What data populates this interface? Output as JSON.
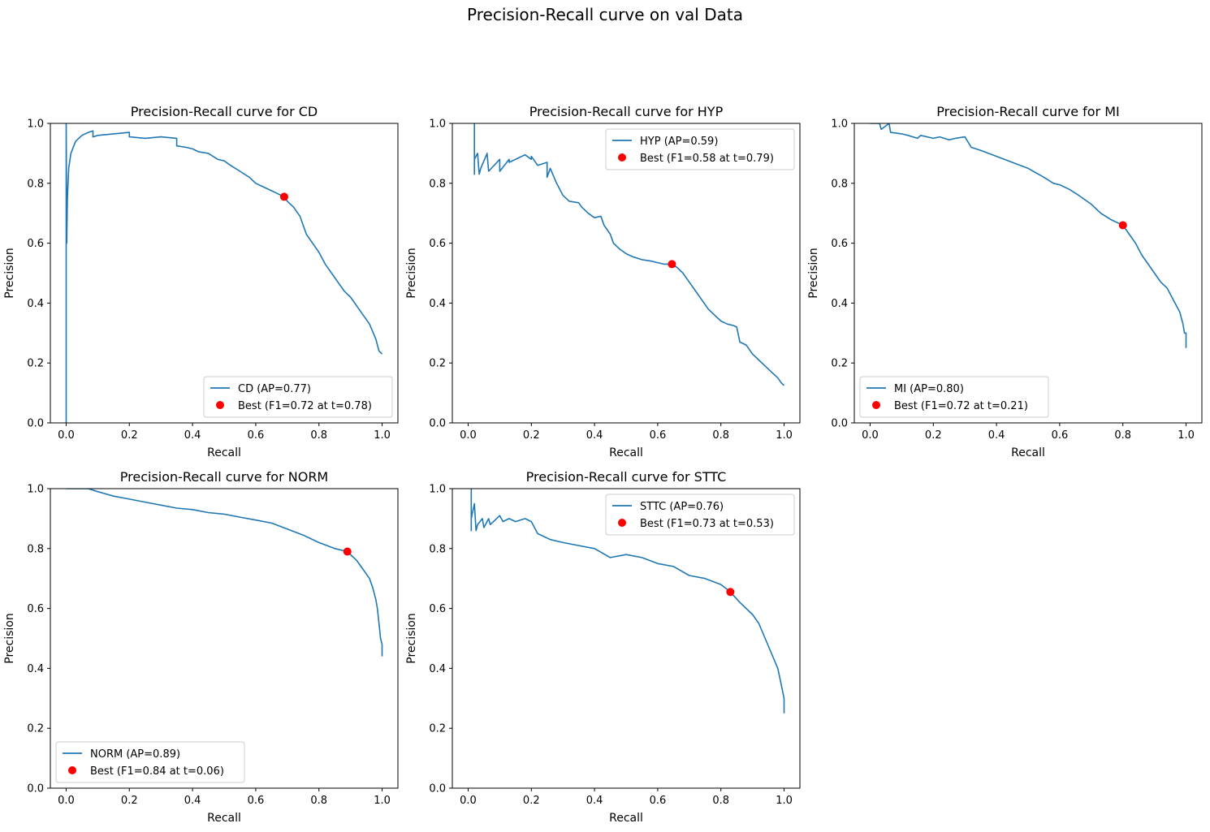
{
  "figure": {
    "title": "Precision-Recall curve on val Data"
  },
  "chart_data": [
    {
      "type": "line",
      "title": "Precision-Recall curve for CD",
      "xlabel": "Recall",
      "ylabel": "Precision",
      "xlim": [
        -0.05,
        1.05
      ],
      "ylim": [
        0.0,
        1.0
      ],
      "xticks": [
        0.0,
        0.2,
        0.4,
        0.6,
        0.8,
        1.0
      ],
      "yticks": [
        0.0,
        0.2,
        0.4,
        0.6,
        0.8,
        1.0
      ],
      "legend_position": "lower right",
      "series": [
        {
          "name": "CD (AP=0.77)",
          "color": "#1f77b4",
          "x": [
            0.0,
            0.0,
            0.002,
            0.004,
            0.008,
            0.015,
            0.03,
            0.05,
            0.07,
            0.085,
            0.085,
            0.1,
            0.15,
            0.2,
            0.2,
            0.25,
            0.3,
            0.35,
            0.35,
            0.38,
            0.4,
            0.42,
            0.45,
            0.48,
            0.5,
            0.52,
            0.55,
            0.58,
            0.6,
            0.62,
            0.65,
            0.67,
            0.69,
            0.7,
            0.72,
            0.74,
            0.75,
            0.76,
            0.78,
            0.8,
            0.82,
            0.84,
            0.86,
            0.88,
            0.9,
            0.92,
            0.94,
            0.96,
            0.98,
            0.99,
            1.0
          ],
          "y": [
            0.0,
            1.0,
            0.6,
            0.75,
            0.85,
            0.9,
            0.94,
            0.96,
            0.97,
            0.975,
            0.955,
            0.96,
            0.965,
            0.97,
            0.955,
            0.95,
            0.955,
            0.95,
            0.925,
            0.92,
            0.915,
            0.905,
            0.9,
            0.88,
            0.875,
            0.86,
            0.84,
            0.82,
            0.8,
            0.79,
            0.775,
            0.765,
            0.755,
            0.74,
            0.72,
            0.69,
            0.66,
            0.63,
            0.6,
            0.57,
            0.53,
            0.5,
            0.47,
            0.44,
            0.42,
            0.39,
            0.36,
            0.33,
            0.28,
            0.24,
            0.23
          ]
        },
        {
          "name": "Best (F1=0.72 at t=0.78)",
          "type": "scatter",
          "color": "#ff0000",
          "x": [
            0.69
          ],
          "y": [
            0.755
          ]
        }
      ]
    },
    {
      "type": "line",
      "title": "Precision-Recall curve for HYP",
      "xlabel": "Recall",
      "ylabel": "Precision",
      "xlim": [
        -0.05,
        1.05
      ],
      "ylim": [
        0.0,
        1.0
      ],
      "xticks": [
        0.0,
        0.2,
        0.4,
        0.6,
        0.8,
        1.0
      ],
      "yticks": [
        0.0,
        0.2,
        0.4,
        0.6,
        0.8,
        1.0
      ],
      "legend_position": "upper right",
      "series": [
        {
          "name": "HYP (AP=0.59)",
          "color": "#1f77b4",
          "x": [
            0.02,
            0.02,
            0.02,
            0.03,
            0.035,
            0.04,
            0.06,
            0.065,
            0.1,
            0.1,
            0.13,
            0.13,
            0.18,
            0.2,
            0.2,
            0.22,
            0.25,
            0.25,
            0.26,
            0.28,
            0.3,
            0.32,
            0.35,
            0.36,
            0.38,
            0.4,
            0.42,
            0.43,
            0.45,
            0.46,
            0.48,
            0.5,
            0.52,
            0.55,
            0.58,
            0.6,
            0.62,
            0.64,
            0.66,
            0.68,
            0.7,
            0.72,
            0.74,
            0.76,
            0.78,
            0.8,
            0.82,
            0.84,
            0.85,
            0.86,
            0.88,
            0.9,
            0.92,
            0.94,
            0.96,
            0.98,
            0.99,
            1.0
          ],
          "y": [
            1.0,
            0.83,
            0.88,
            0.9,
            0.83,
            0.85,
            0.9,
            0.84,
            0.88,
            0.84,
            0.88,
            0.87,
            0.895,
            0.88,
            0.89,
            0.86,
            0.87,
            0.82,
            0.85,
            0.8,
            0.76,
            0.74,
            0.735,
            0.72,
            0.7,
            0.685,
            0.69,
            0.66,
            0.63,
            0.6,
            0.58,
            0.565,
            0.555,
            0.545,
            0.54,
            0.535,
            0.53,
            0.53,
            0.52,
            0.5,
            0.47,
            0.44,
            0.41,
            0.38,
            0.36,
            0.34,
            0.33,
            0.325,
            0.32,
            0.27,
            0.26,
            0.23,
            0.21,
            0.19,
            0.17,
            0.15,
            0.135,
            0.125
          ]
        },
        {
          "name": "Best (F1=0.58 at t=0.79)",
          "type": "scatter",
          "color": "#ff0000",
          "x": [
            0.645
          ],
          "y": [
            0.53
          ]
        }
      ]
    },
    {
      "type": "line",
      "title": "Precision-Recall curve for MI",
      "xlabel": "Recall",
      "ylabel": "Precision",
      "xlim": [
        -0.05,
        1.05
      ],
      "ylim": [
        0.0,
        1.0
      ],
      "xticks": [
        0.0,
        0.2,
        0.4,
        0.6,
        0.8,
        1.0
      ],
      "yticks": [
        0.0,
        0.2,
        0.4,
        0.6,
        0.8,
        1.0
      ],
      "legend_position": "lower left",
      "series": [
        {
          "name": "MI (AP=0.80)",
          "color": "#1f77b4",
          "x": [
            0.0,
            0.03,
            0.035,
            0.06,
            0.065,
            0.1,
            0.12,
            0.15,
            0.16,
            0.2,
            0.22,
            0.25,
            0.27,
            0.3,
            0.32,
            0.35,
            0.4,
            0.45,
            0.5,
            0.55,
            0.58,
            0.6,
            0.63,
            0.66,
            0.7,
            0.73,
            0.76,
            0.78,
            0.8,
            0.82,
            0.84,
            0.86,
            0.88,
            0.9,
            0.92,
            0.94,
            0.96,
            0.98,
            0.99,
            0.995,
            1.0,
            1.0
          ],
          "y": [
            1.0,
            1.0,
            0.98,
            1.0,
            0.97,
            0.965,
            0.96,
            0.95,
            0.96,
            0.95,
            0.955,
            0.945,
            0.95,
            0.955,
            0.92,
            0.91,
            0.89,
            0.87,
            0.85,
            0.82,
            0.8,
            0.795,
            0.78,
            0.76,
            0.73,
            0.7,
            0.68,
            0.67,
            0.66,
            0.63,
            0.6,
            0.56,
            0.53,
            0.5,
            0.47,
            0.45,
            0.41,
            0.37,
            0.33,
            0.3,
            0.3,
            0.25
          ]
        },
        {
          "name": "Best (F1=0.72 at t=0.21)",
          "type": "scatter",
          "color": "#ff0000",
          "x": [
            0.8
          ],
          "y": [
            0.66
          ]
        }
      ]
    },
    {
      "type": "line",
      "title": "Precision-Recall curve for NORM",
      "xlabel": "Recall",
      "ylabel": "Precision",
      "xlim": [
        -0.05,
        1.05
      ],
      "ylim": [
        0.0,
        1.0
      ],
      "xticks": [
        0.0,
        0.2,
        0.4,
        0.6,
        0.8,
        1.0
      ],
      "yticks": [
        0.0,
        0.2,
        0.4,
        0.6,
        0.8,
        1.0
      ],
      "legend_position": "lower left",
      "series": [
        {
          "name": "NORM (AP=0.89)",
          "color": "#1f77b4",
          "x": [
            0.0,
            0.07,
            0.1,
            0.15,
            0.2,
            0.25,
            0.3,
            0.35,
            0.4,
            0.45,
            0.5,
            0.55,
            0.6,
            0.65,
            0.7,
            0.75,
            0.8,
            0.85,
            0.89,
            0.92,
            0.94,
            0.96,
            0.97,
            0.98,
            0.985,
            0.99,
            0.995,
            1.0,
            1.0
          ],
          "y": [
            1.0,
            1.0,
            0.99,
            0.975,
            0.965,
            0.955,
            0.945,
            0.935,
            0.93,
            0.92,
            0.915,
            0.905,
            0.895,
            0.885,
            0.865,
            0.845,
            0.82,
            0.8,
            0.79,
            0.76,
            0.73,
            0.7,
            0.67,
            0.63,
            0.6,
            0.55,
            0.5,
            0.48,
            0.44
          ]
        },
        {
          "name": "Best (F1=0.84 at t=0.06)",
          "type": "scatter",
          "color": "#ff0000",
          "x": [
            0.89
          ],
          "y": [
            0.79
          ]
        }
      ]
    },
    {
      "type": "line",
      "title": "Precision-Recall curve for STTC",
      "xlabel": "Recall",
      "ylabel": "Precision",
      "xlim": [
        -0.05,
        1.05
      ],
      "ylim": [
        0.0,
        1.0
      ],
      "xticks": [
        0.0,
        0.2,
        0.4,
        0.6,
        0.8,
        1.0
      ],
      "yticks": [
        0.0,
        0.2,
        0.4,
        0.6,
        0.8,
        1.0
      ],
      "legend_position": "upper right",
      "series": [
        {
          "name": "STTC (AP=0.76)",
          "color": "#1f77b4",
          "x": [
            0.01,
            0.01,
            0.01,
            0.02,
            0.025,
            0.03,
            0.045,
            0.05,
            0.065,
            0.07,
            0.1,
            0.11,
            0.13,
            0.15,
            0.18,
            0.2,
            0.22,
            0.24,
            0.26,
            0.3,
            0.35,
            0.4,
            0.45,
            0.5,
            0.55,
            0.6,
            0.65,
            0.7,
            0.75,
            0.8,
            0.83,
            0.86,
            0.9,
            0.92,
            0.94,
            0.96,
            0.98,
            0.99,
            1.0,
            1.0
          ],
          "y": [
            1.0,
            0.86,
            0.9,
            0.95,
            0.86,
            0.88,
            0.9,
            0.87,
            0.9,
            0.88,
            0.91,
            0.89,
            0.9,
            0.89,
            0.9,
            0.89,
            0.85,
            0.84,
            0.83,
            0.82,
            0.81,
            0.8,
            0.77,
            0.78,
            0.77,
            0.75,
            0.74,
            0.71,
            0.7,
            0.68,
            0.655,
            0.62,
            0.58,
            0.55,
            0.5,
            0.45,
            0.4,
            0.35,
            0.3,
            0.25
          ]
        },
        {
          "name": "Best (F1=0.73 at t=0.53)",
          "type": "scatter",
          "color": "#ff0000",
          "x": [
            0.83
          ],
          "y": [
            0.655
          ]
        }
      ]
    }
  ]
}
